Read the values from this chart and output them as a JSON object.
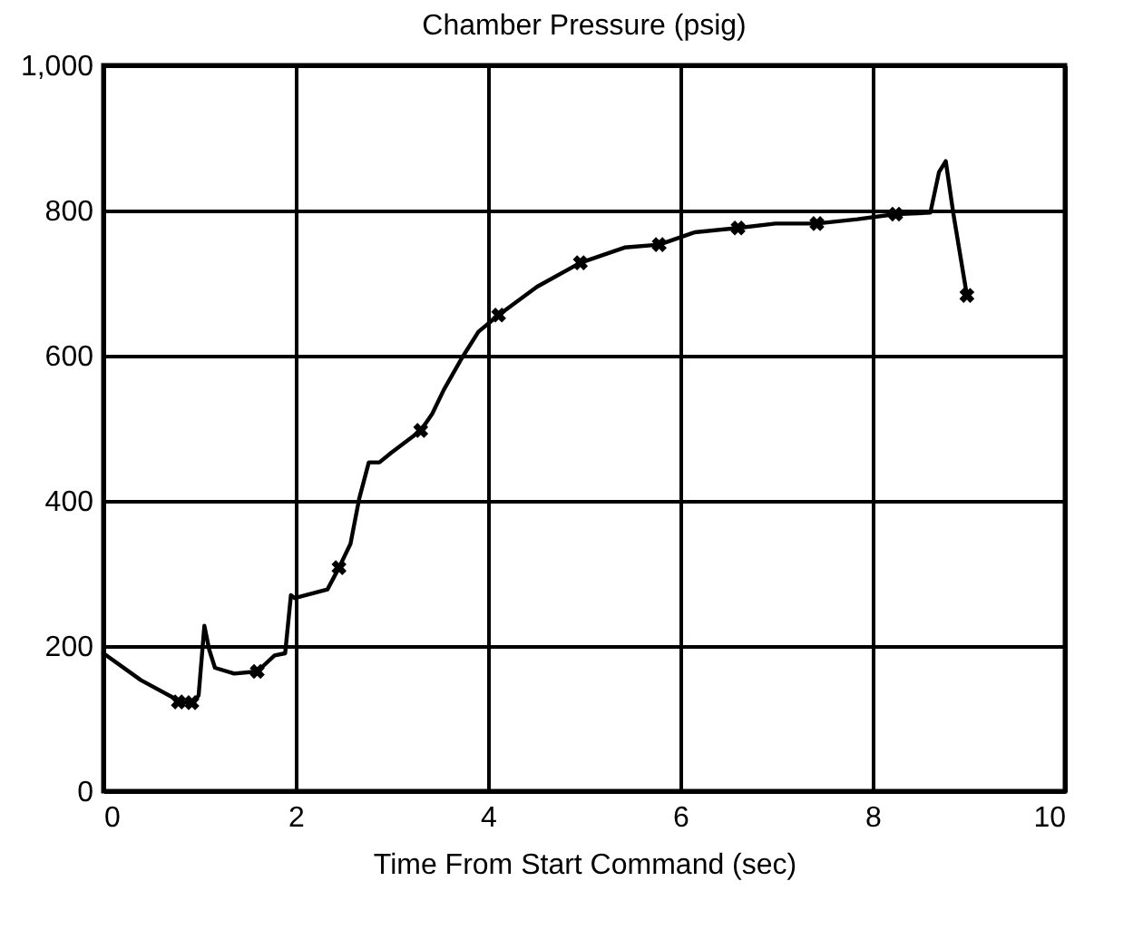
{
  "chart_data": {
    "type": "line",
    "title": "Chamber Pressure (psig)",
    "xlabel": "Time From Start Command (sec)",
    "xlim": [
      0,
      10
    ],
    "xticks": [
      0,
      2,
      4,
      6,
      8,
      10
    ],
    "ylim": [
      0,
      1000
    ],
    "yticks": [
      0,
      200,
      400,
      600,
      800,
      {
        "value": 1000,
        "label": "1,000"
      }
    ],
    "grid": true,
    "series": [
      {
        "type": "line",
        "color": "#000000",
        "marker": "none",
        "line_style": "solid",
        "x": [
          0,
          0.39,
          0.78,
          0.93,
          0.99,
          1.05,
          1.1,
          1.16,
          1.36,
          1.6,
          1.78,
          1.89,
          1.95,
          1.99,
          2.33,
          2.45,
          2.57,
          2.66,
          2.76,
          2.87,
          2.99,
          3.3,
          3.42,
          3.54,
          3.72,
          3.9,
          4.11,
          4.51,
          4.96,
          5.42,
          5.78,
          6.15,
          6.6,
          6.99,
          7.42,
          7.84,
          8.24,
          8.6,
          8.69,
          8.76,
          8.84,
          8.98
        ],
        "values": [
          190,
          153,
          125,
          120,
          132,
          228,
          195,
          170,
          162,
          165,
          187,
          190,
          270,
          266,
          278,
          308,
          341,
          403,
          453,
          453,
          466,
          497,
          520,
          553,
          595,
          633,
          656,
          695,
          728,
          749,
          753,
          770,
          776,
          782,
          782,
          788,
          795,
          797,
          853,
          868,
          795,
          683
        ]
      },
      {
        "type": "scatter",
        "color": "#000000",
        "marker": "cross",
        "x": [
          0.78,
          0.92,
          1.6,
          2.45,
          3.3,
          4.11,
          4.96,
          5.78,
          6.6,
          7.42,
          8.24,
          8.98
        ],
        "values": [
          123,
          122,
          165,
          308,
          497,
          656,
          728,
          753,
          776,
          782,
          795,
          683
        ]
      }
    ]
  }
}
